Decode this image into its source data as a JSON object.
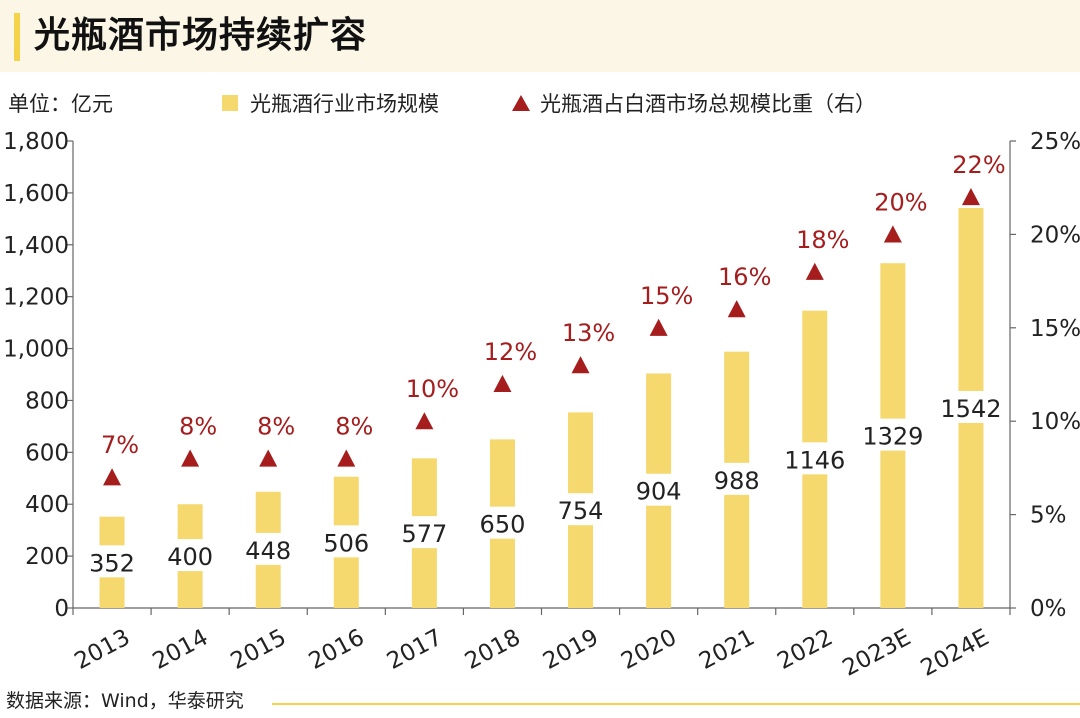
{
  "header": {
    "title": "光瓶酒市场持续扩容"
  },
  "unit_label": "单位：亿元",
  "source": "数据来源：Wind，华泰研究",
  "colors": {
    "bar": "#f5d86e",
    "marker": "#a51d1d",
    "pct_label": "#a51d1d",
    "axis": "#666666",
    "title_accent": "#f4d24a"
  },
  "chart_data": {
    "type": "bar",
    "title": "光瓶酒市场持续扩容",
    "categories": [
      "2013",
      "2014",
      "2015",
      "2016",
      "2017",
      "2018",
      "2019",
      "2020",
      "2021",
      "2022",
      "2023E",
      "2024E"
    ],
    "series": [
      {
        "name": "光瓶酒行业市场规模",
        "type": "bar",
        "axis": "left",
        "values": [
          352,
          400,
          448,
          506,
          577,
          650,
          754,
          904,
          988,
          1146,
          1329,
          1542
        ]
      },
      {
        "name": "光瓶酒占白酒市场总规模比重（右）",
        "type": "scatter",
        "marker": "triangle",
        "axis": "right",
        "values": [
          7,
          8,
          8,
          8,
          10,
          12,
          13,
          15,
          16,
          18,
          20,
          22
        ],
        "labels": [
          "7%",
          "8%",
          "8%",
          "8%",
          "10%",
          "12%",
          "13%",
          "15%",
          "16%",
          "18%",
          "20%",
          "22%"
        ]
      }
    ],
    "y_left": {
      "min": 0,
      "max": 1800,
      "step": 200,
      "tick_labels": [
        "0",
        "200",
        "400",
        "600",
        "800",
        "1,000",
        "1,200",
        "1,400",
        "1,600",
        "1,800"
      ]
    },
    "y_right": {
      "min": 0,
      "max": 25,
      "step": 5,
      "tick_labels": [
        "0%",
        "5%",
        "10%",
        "15%",
        "20%",
        "25%"
      ]
    },
    "legend_position": "top",
    "grid": false
  }
}
